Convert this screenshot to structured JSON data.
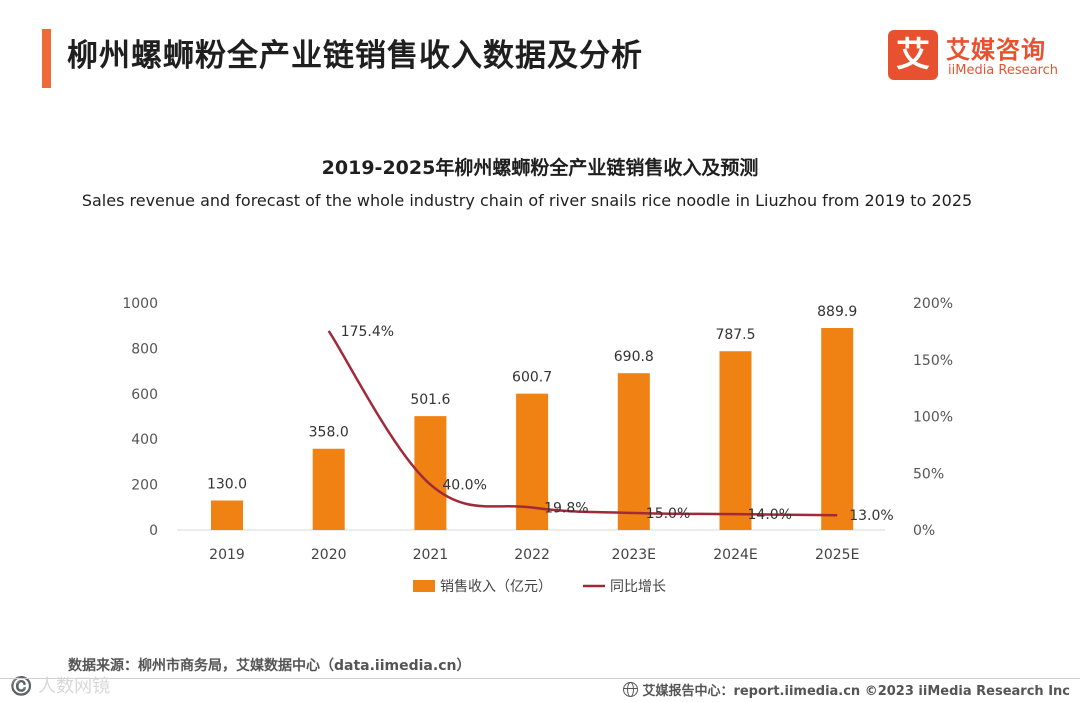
{
  "page": {
    "title": "柳州螺蛳粉全产业链销售收入数据及分析",
    "logo_icon": "艾",
    "logo_cn": "艾媒咨询",
    "logo_en": "iiMedia Research",
    "source": "数据来源：柳州市商务局，艾媒数据中心（data.iimedia.cn）",
    "watermark": "©️ 人数网镜",
    "footer": "艾媒报告中心：report.iimedia.cn   ©2023  iiMedia Research  Inc"
  },
  "colors": {
    "accent": "#ef6a3a",
    "brand": "#e8512f",
    "bar": "#f08113",
    "line": "#a12a3a"
  },
  "chart_data": {
    "type": "bar",
    "title": "2019-2025年柳州螺蛳粉全产业链销售收入及预测",
    "subtitle": "Sales revenue and forecast of the whole industry chain of river snails rice noodle in Liuzhou  from 2019 to 2025",
    "categories": [
      "2019",
      "2020",
      "2021",
      "2022",
      "2023E",
      "2024E",
      "2025E"
    ],
    "series": [
      {
        "name": "销售收入（亿元）",
        "type": "bar",
        "axis": "left",
        "values": [
          130.0,
          358.0,
          501.6,
          600.7,
          690.8,
          787.5,
          889.9
        ],
        "labels": [
          "130.0",
          "358.0",
          "501.6",
          "600.7",
          "690.8",
          "787.5",
          "889.9"
        ]
      },
      {
        "name": "同比增长",
        "type": "line",
        "axis": "right",
        "values": [
          null,
          175.4,
          40.0,
          19.8,
          15.0,
          14.0,
          13.0
        ],
        "labels": [
          "",
          "175.4%",
          "40.0%",
          "19.8%",
          "15.0%",
          "14.0%",
          "13.0%"
        ]
      }
    ],
    "ylim": [
      0,
      1000
    ],
    "yticks": [
      "0",
      "200",
      "400",
      "600",
      "800",
      "1000"
    ],
    "y2lim": [
      0,
      200
    ],
    "y2ticks": [
      "0%",
      "50%",
      "100%",
      "150%",
      "200%"
    ],
    "grid": false,
    "legend_position": "bottom"
  }
}
